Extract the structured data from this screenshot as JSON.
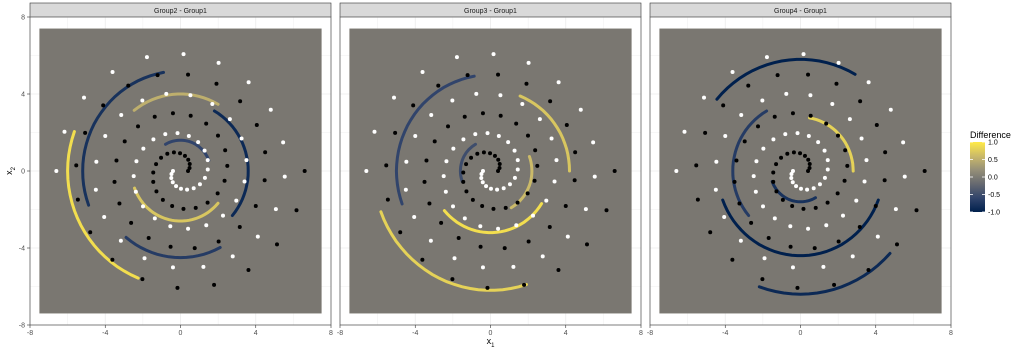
{
  "chart_data": {
    "type": "scatter",
    "facet_titles": [
      "Group2 - Group1",
      "Group3 - Group1",
      "Group4 - Group1"
    ],
    "xlabel_main": "x",
    "xlabel_sub": "1",
    "ylabel_main": "x",
    "ylabel_sub": "2",
    "xlim": [
      -8,
      8
    ],
    "ylim": [
      -8,
      8
    ],
    "x_ticks": [
      -8,
      -4,
      0,
      4,
      8
    ],
    "y_ticks": [
      -8,
      -4,
      0,
      4,
      8
    ],
    "x_tick_labels": [
      "-8",
      "-4",
      "0",
      "4",
      "8"
    ],
    "y_tick_labels": [
      "-8",
      "-4",
      "0",
      "4",
      "8"
    ],
    "grid": true,
    "data_region": {
      "xmin": -7.5,
      "xmax": 7.5,
      "ymin": -7.4,
      "ymax": 7.4
    },
    "region_color": "#7a7771",
    "points": {
      "spiral_a_color": "#000000",
      "spiral_b_color": "#ffffff",
      "n_per_spiral": 60,
      "theta_start_deg": 0,
      "theta_end_deg": 1080,
      "radius_start": 0.4,
      "radius_end": 6.6
    },
    "legend": {
      "title": "Difference",
      "placement": "right",
      "scale": [
        "#00204d",
        "#31446b",
        "#666970",
        "#958f78",
        "#cbba69",
        "#ffea46"
      ],
      "range": [
        -1.0,
        1.0
      ],
      "tick_values": [
        1.0,
        0.5,
        0.0,
        -0.5,
        -1.0
      ],
      "tick_labels": [
        "1.0",
        "0.5",
        "0.0",
        "-0.5",
        "-1.0"
      ]
    },
    "contour_series": [
      {
        "name": "Group2 - Group1",
        "segments": [
          {
            "r": 2.6,
            "from": 200,
            "to": 320,
            "value": 0.7
          },
          {
            "r": 6.0,
            "from": 160,
            "to": 250,
            "value": 0.9
          },
          {
            "r": 5.2,
            "from": 100,
            "to": 200,
            "value": -0.8
          },
          {
            "r": 3.6,
            "from": 320,
            "to": 420,
            "value": -0.9
          },
          {
            "r": 4.5,
            "from": 230,
            "to": 300,
            "value": -0.7
          },
          {
            "r": 1.6,
            "from": 20,
            "to": 120,
            "value": -0.6
          },
          {
            "r": 4.0,
            "from": 60,
            "to": 130,
            "value": 0.5
          }
        ]
      },
      {
        "name": "Group3 - Group1",
        "segments": [
          {
            "r": 3.2,
            "from": 220,
            "to": 330,
            "value": 0.9
          },
          {
            "r": 6.2,
            "from": 200,
            "to": 290,
            "value": 0.8
          },
          {
            "r": 5.0,
            "from": 100,
            "to": 200,
            "value": -0.6
          },
          {
            "r": 2.2,
            "from": 300,
            "to": 380,
            "value": 0.6
          },
          {
            "r": 4.2,
            "from": 0,
            "to": 70,
            "value": 0.7
          },
          {
            "r": 1.6,
            "from": 120,
            "to": 200,
            "value": -0.5
          }
        ]
      },
      {
        "name": "Group4 - Group1",
        "segments": [
          {
            "r": 4.4,
            "from": 200,
            "to": 340,
            "value": -1.0
          },
          {
            "r": 5.8,
            "from": 60,
            "to": 140,
            "value": -1.0
          },
          {
            "r": 2.8,
            "from": 0,
            "to": 80,
            "value": 0.8
          },
          {
            "r": 3.6,
            "from": 120,
            "to": 220,
            "value": -0.7
          },
          {
            "r": 1.6,
            "from": 200,
            "to": 300,
            "value": -0.8
          },
          {
            "r": 6.4,
            "from": 250,
            "to": 320,
            "value": -0.9
          }
        ]
      }
    ]
  }
}
